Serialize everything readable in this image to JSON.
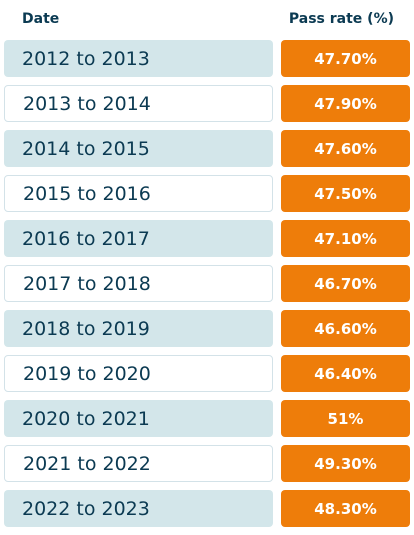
{
  "header": {
    "date_label": "Date",
    "rate_label": "Pass rate (%)"
  },
  "colors": {
    "header_text": "#0b3a52",
    "shaded_row": "#d3e6ea",
    "rate_fill": "#ee7d0a"
  },
  "rows": [
    {
      "date": "2012 to 2013",
      "rate": "47.70%"
    },
    {
      "date": "2013 to 2014",
      "rate": "47.90%"
    },
    {
      "date": "2014 to 2015",
      "rate": "47.60%"
    },
    {
      "date": "2015 to 2016",
      "rate": "47.50%"
    },
    {
      "date": "2016 to 2017",
      "rate": "47.10%"
    },
    {
      "date": "2017 to 2018",
      "rate": "46.70%"
    },
    {
      "date": "2018 to 2019",
      "rate": "46.60%"
    },
    {
      "date": "2019 to 2020",
      "rate": "46.40%"
    },
    {
      "date": "2020 to 2021",
      "rate": "51%"
    },
    {
      "date": "2021 to 2022",
      "rate": "49.30%"
    },
    {
      "date": "2022 to 2023",
      "rate": "48.30%"
    }
  ],
  "chart_data": {
    "type": "table",
    "columns": [
      "Date",
      "Pass rate (%)"
    ],
    "categories": [
      "2012 to 2013",
      "2013 to 2014",
      "2014 to 2015",
      "2015 to 2016",
      "2016 to 2017",
      "2017 to 2018",
      "2018 to 2019",
      "2019 to 2020",
      "2020 to 2021",
      "2021 to 2022",
      "2022 to 2023"
    ],
    "values": [
      47.7,
      47.9,
      47.6,
      47.5,
      47.1,
      46.7,
      46.6,
      46.4,
      51,
      49.3,
      48.3
    ]
  }
}
